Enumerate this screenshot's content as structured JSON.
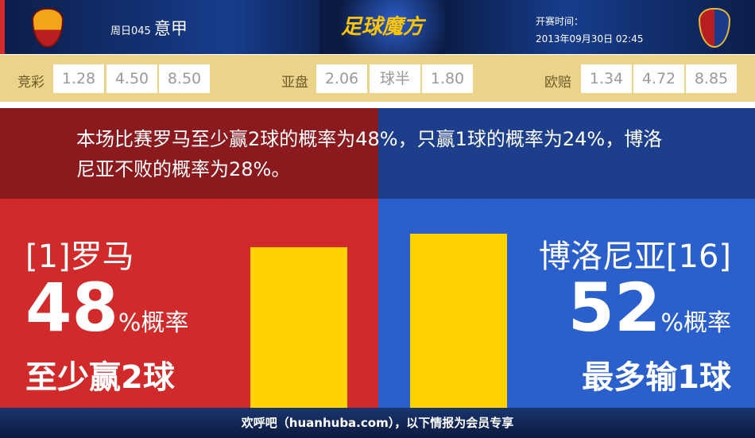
{
  "header": {
    "match_code": "周日045",
    "league": "意甲",
    "brand": "足球魔方",
    "kickoff_label": "开赛时间：",
    "kickoff_time": "2013年09月30日 02:45",
    "home_logo": "AS Roma crest",
    "away_logo": "Bologna FC crest"
  },
  "odds": {
    "jingcai": {
      "label": "竞彩",
      "values": [
        "1.28",
        "4.50",
        "8.50"
      ]
    },
    "yapan": {
      "label": "亚盘",
      "values": [
        "2.06",
        "球半",
        "1.80"
      ]
    },
    "oupei": {
      "label": "欧赔",
      "values": [
        "1.34",
        "4.72",
        "8.85"
      ]
    }
  },
  "summary": "本场比赛罗马至少赢2球的概率为48%，只赢1球的概率为24%，博洛尼亚不败的概率为28%。",
  "home": {
    "name": "[1]罗马",
    "percent": "48",
    "percent_suffix": "%概率",
    "desc": "至少赢2球",
    "color": "#d02a2a"
  },
  "away": {
    "name": "博洛尼亚[16]",
    "percent": "52",
    "percent_suffix": "%概率",
    "desc": "最多输1球",
    "color": "#2a5fcc"
  },
  "bar_color": "#ffd200",
  "footer": "欢呼吧（huanhuba.com），以下情报为会员专享"
}
